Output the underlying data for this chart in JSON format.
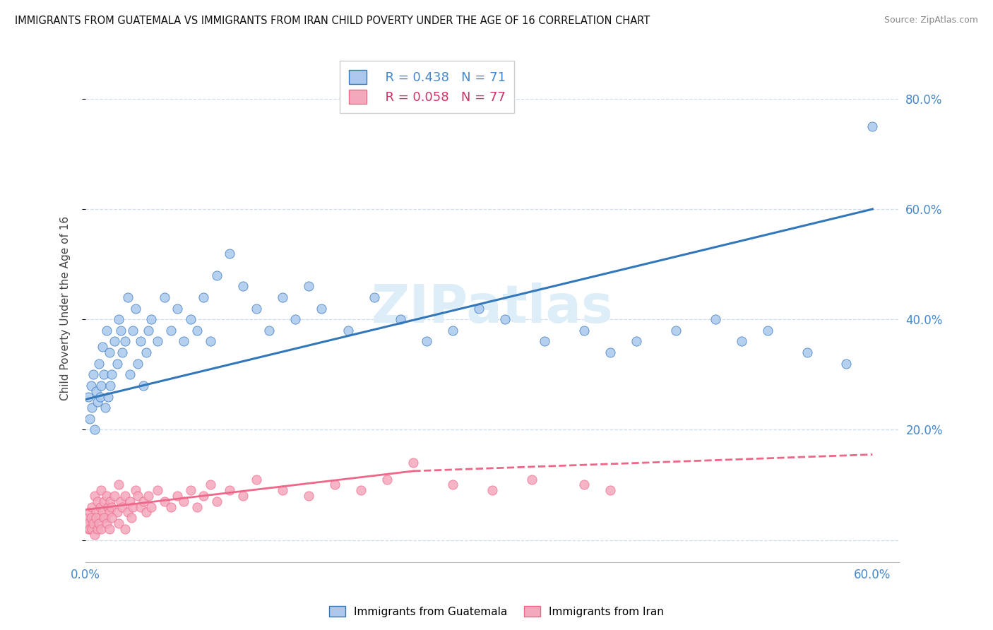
{
  "title": "IMMIGRANTS FROM GUATEMALA VS IMMIGRANTS FROM IRAN CHILD POVERTY UNDER THE AGE OF 16 CORRELATION CHART",
  "source": "Source: ZipAtlas.com",
  "ylabel": "Child Poverty Under the Age of 16",
  "xlim": [
    0.0,
    0.62
  ],
  "ylim": [
    -0.04,
    0.88
  ],
  "xticks": [
    0.0,
    0.6
  ],
  "xticklabels": [
    "0.0%",
    "60.0%"
  ],
  "yticks": [
    0.0,
    0.2,
    0.4,
    0.6,
    0.8
  ],
  "yticklabels": [
    "",
    "20.0%",
    "40.0%",
    "60.0%",
    "80.0%"
  ],
  "legend_r_guatemala": "R = 0.438",
  "legend_n_guatemala": "N = 71",
  "legend_r_iran": "R = 0.058",
  "legend_n_iran": "N = 77",
  "guatemala_color": "#aac8ee",
  "iran_color": "#f4a8bc",
  "trend_guatemala_color": "#3377bb",
  "trend_iran_solid_color": "#ee6688",
  "trend_iran_dash_color": "#ee6688",
  "watermark_color": "#ddeef8",
  "background_color": "#ffffff",
  "grid_color": "#d0dcea",
  "guatemala_scatter": {
    "x": [
      0.002,
      0.003,
      0.004,
      0.005,
      0.006,
      0.007,
      0.008,
      0.009,
      0.01,
      0.011,
      0.012,
      0.013,
      0.014,
      0.015,
      0.016,
      0.017,
      0.018,
      0.019,
      0.02,
      0.022,
      0.024,
      0.025,
      0.027,
      0.028,
      0.03,
      0.032,
      0.034,
      0.036,
      0.038,
      0.04,
      0.042,
      0.044,
      0.046,
      0.048,
      0.05,
      0.055,
      0.06,
      0.065,
      0.07,
      0.075,
      0.08,
      0.085,
      0.09,
      0.095,
      0.1,
      0.11,
      0.12,
      0.13,
      0.14,
      0.15,
      0.16,
      0.17,
      0.18,
      0.2,
      0.22,
      0.24,
      0.26,
      0.28,
      0.3,
      0.32,
      0.35,
      0.38,
      0.4,
      0.42,
      0.45,
      0.48,
      0.5,
      0.52,
      0.55,
      0.58,
      0.6
    ],
    "y": [
      0.26,
      0.22,
      0.28,
      0.24,
      0.3,
      0.2,
      0.27,
      0.25,
      0.32,
      0.26,
      0.28,
      0.35,
      0.3,
      0.24,
      0.38,
      0.26,
      0.34,
      0.28,
      0.3,
      0.36,
      0.32,
      0.4,
      0.38,
      0.34,
      0.36,
      0.44,
      0.3,
      0.38,
      0.42,
      0.32,
      0.36,
      0.28,
      0.34,
      0.38,
      0.4,
      0.36,
      0.44,
      0.38,
      0.42,
      0.36,
      0.4,
      0.38,
      0.44,
      0.36,
      0.48,
      0.52,
      0.46,
      0.42,
      0.38,
      0.44,
      0.4,
      0.46,
      0.42,
      0.38,
      0.44,
      0.4,
      0.36,
      0.38,
      0.42,
      0.4,
      0.36,
      0.38,
      0.34,
      0.36,
      0.38,
      0.4,
      0.36,
      0.38,
      0.34,
      0.32,
      0.75
    ]
  },
  "iran_scatter": {
    "x": [
      0.001,
      0.002,
      0.003,
      0.004,
      0.005,
      0.006,
      0.007,
      0.008,
      0.009,
      0.01,
      0.011,
      0.012,
      0.013,
      0.014,
      0.015,
      0.016,
      0.017,
      0.018,
      0.019,
      0.02,
      0.022,
      0.024,
      0.025,
      0.027,
      0.028,
      0.03,
      0.032,
      0.034,
      0.036,
      0.038,
      0.04,
      0.042,
      0.044,
      0.046,
      0.048,
      0.05,
      0.055,
      0.06,
      0.065,
      0.07,
      0.075,
      0.08,
      0.085,
      0.09,
      0.095,
      0.1,
      0.11,
      0.12,
      0.13,
      0.15,
      0.17,
      0.19,
      0.21,
      0.23,
      0.25,
      0.28,
      0.31,
      0.34,
      0.38,
      0.4,
      0.002,
      0.003,
      0.004,
      0.005,
      0.006,
      0.007,
      0.008,
      0.009,
      0.01,
      0.012,
      0.014,
      0.016,
      0.018,
      0.02,
      0.025,
      0.03,
      0.035
    ],
    "y": [
      0.04,
      0.02,
      0.05,
      0.03,
      0.06,
      0.04,
      0.08,
      0.05,
      0.07,
      0.04,
      0.06,
      0.09,
      0.05,
      0.07,
      0.04,
      0.08,
      0.06,
      0.05,
      0.07,
      0.06,
      0.08,
      0.05,
      0.1,
      0.07,
      0.06,
      0.08,
      0.05,
      0.07,
      0.06,
      0.09,
      0.08,
      0.06,
      0.07,
      0.05,
      0.08,
      0.06,
      0.09,
      0.07,
      0.06,
      0.08,
      0.07,
      0.09,
      0.06,
      0.08,
      0.1,
      0.07,
      0.09,
      0.08,
      0.11,
      0.09,
      0.08,
      0.1,
      0.09,
      0.11,
      0.14,
      0.1,
      0.09,
      0.11,
      0.1,
      0.09,
      0.03,
      0.02,
      0.04,
      0.02,
      0.03,
      0.01,
      0.04,
      0.02,
      0.03,
      0.02,
      0.04,
      0.03,
      0.02,
      0.04,
      0.03,
      0.02,
      0.04
    ]
  },
  "trend_g_x0": 0.0,
  "trend_g_y0": 0.255,
  "trend_g_x1": 0.6,
  "trend_g_y1": 0.6,
  "trend_i_solid_x0": 0.0,
  "trend_i_solid_y0": 0.055,
  "trend_i_solid_x1": 0.25,
  "trend_i_solid_y1": 0.125,
  "trend_i_dash_x0": 0.25,
  "trend_i_dash_y0": 0.125,
  "trend_i_dash_x1": 0.6,
  "trend_i_dash_y1": 0.155
}
